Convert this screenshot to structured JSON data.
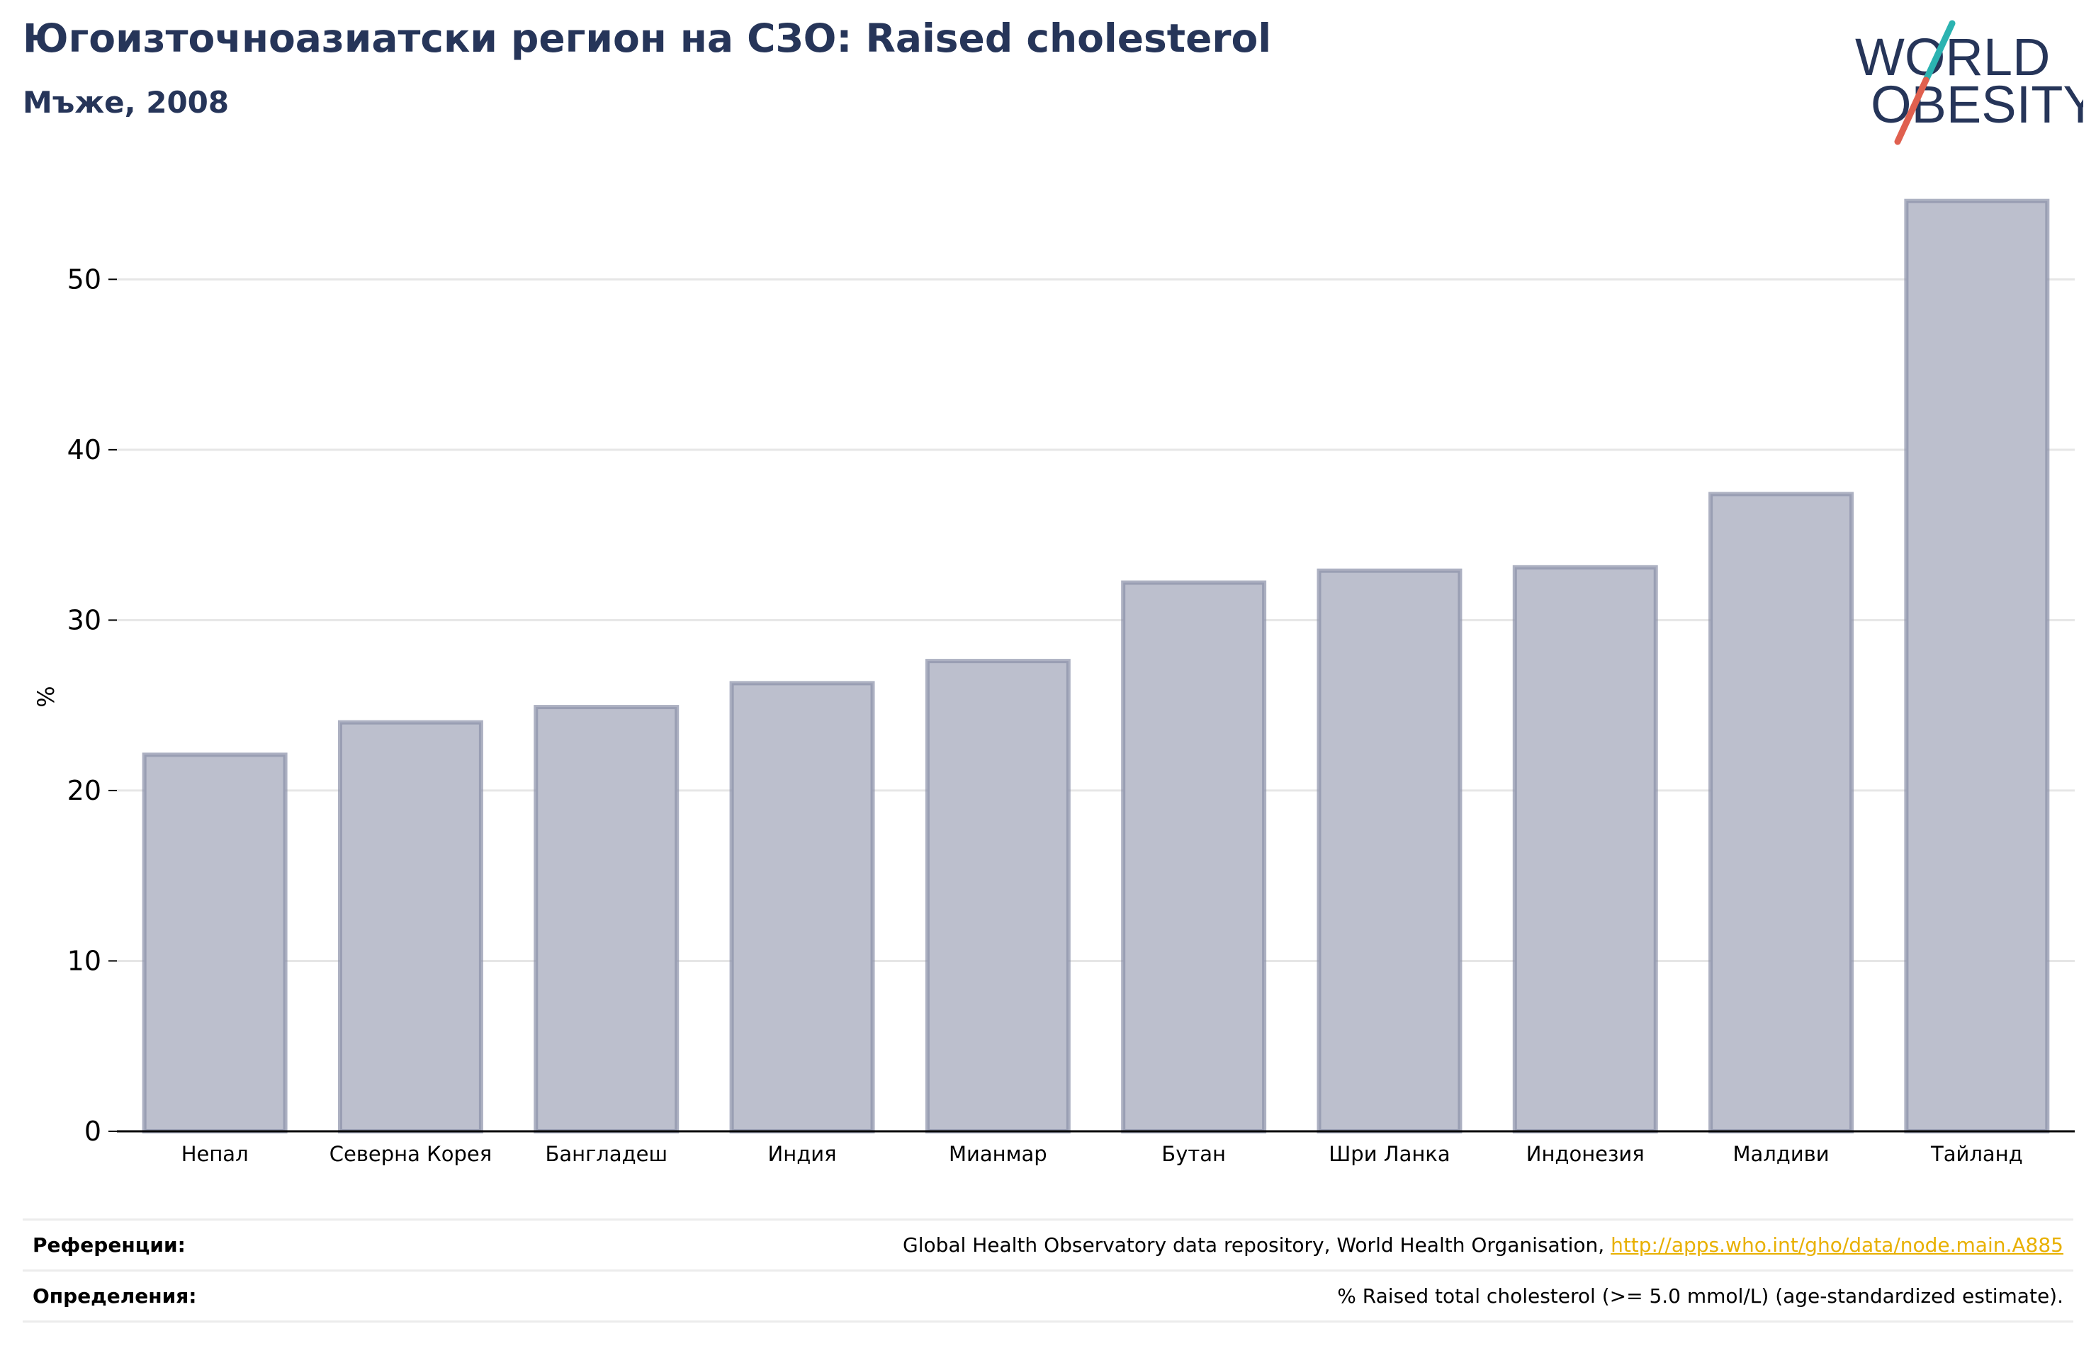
{
  "header": {
    "title": "Югоизточноазиатски регион на СЗО: Raised cholesterol",
    "subtitle": "Мъже, 2008"
  },
  "logo": {
    "text_line1": "WORLD",
    "text_line2": "OBESITY",
    "colors": {
      "text": "#263559",
      "slash_top": "#2bb3b1",
      "slash_bottom": "#e0604f"
    }
  },
  "chart_data": {
    "type": "bar",
    "categories": [
      "Непал",
      "Северна Корея",
      "Бангладеш",
      "Индия",
      "Мианмар",
      "Бутан",
      "Шри Ланка",
      "Индонезия",
      "Малдиви",
      "Тайланд"
    ],
    "values": [
      22.1,
      24.0,
      24.9,
      26.3,
      27.6,
      32.2,
      32.9,
      33.1,
      37.4,
      54.6
    ],
    "title": "",
    "xlabel": "",
    "ylabel": "%",
    "ylim": [
      0,
      56
    ],
    "yticks": [
      0,
      10,
      20,
      30,
      40,
      50
    ],
    "grid": true,
    "bar_fill": "#bcbfcd",
    "bar_stroke": "#8a90a8",
    "axis_color": "#000000",
    "grid_color": "#e6e6e6"
  },
  "footer": {
    "references_label": "Референции:",
    "references_text": "Global Health Observatory data repository, World Health Organisation,",
    "references_link": "http://apps.who.int/gho/data/node.main.A885",
    "definitions_label": "Определения:",
    "definitions_text": "% Raised total cholesterol (>= 5.0 mmol/L) (age-standardized estimate)."
  }
}
